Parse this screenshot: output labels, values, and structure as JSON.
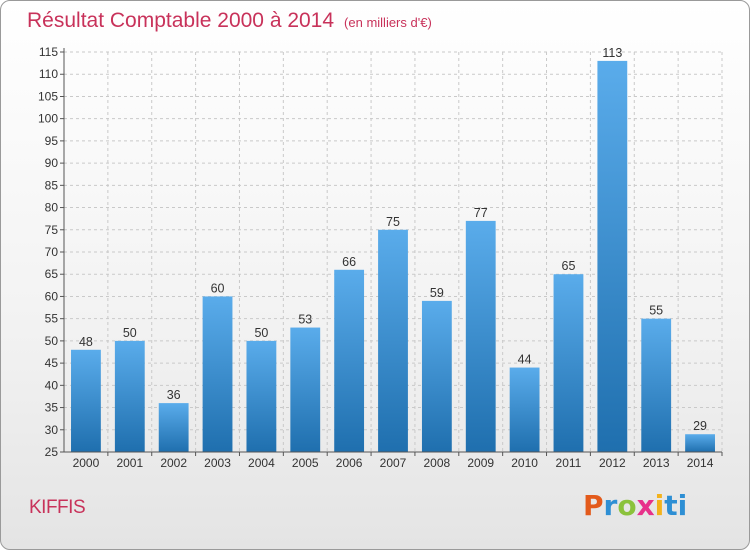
{
  "title": "Résultat Comptable 2000 à 2014",
  "subtitle": "(en milliers d'€)",
  "commune": "KIFFIS",
  "logo_text": "Proxiti",
  "colors": {
    "title": "#c8325a",
    "bar_light": "#5aaceb",
    "bar_dark": "#1f6fae"
  },
  "chart_data": {
    "type": "bar",
    "title": "Résultat Comptable 2000 à 2014",
    "subtitle": "(en milliers d'€)",
    "categories": [
      "2000",
      "2001",
      "2002",
      "2003",
      "2004",
      "2005",
      "2006",
      "2007",
      "2008",
      "2009",
      "2010",
      "2011",
      "2012",
      "2013",
      "2014"
    ],
    "values": [
      48,
      50,
      36,
      60,
      50,
      53,
      66,
      75,
      59,
      77,
      44,
      65,
      113,
      55,
      29
    ],
    "ylim": [
      25,
      115
    ],
    "yticks": [
      25,
      30,
      35,
      40,
      45,
      50,
      55,
      60,
      65,
      70,
      75,
      80,
      85,
      90,
      95,
      100,
      105,
      110,
      115
    ],
    "grid": true
  }
}
